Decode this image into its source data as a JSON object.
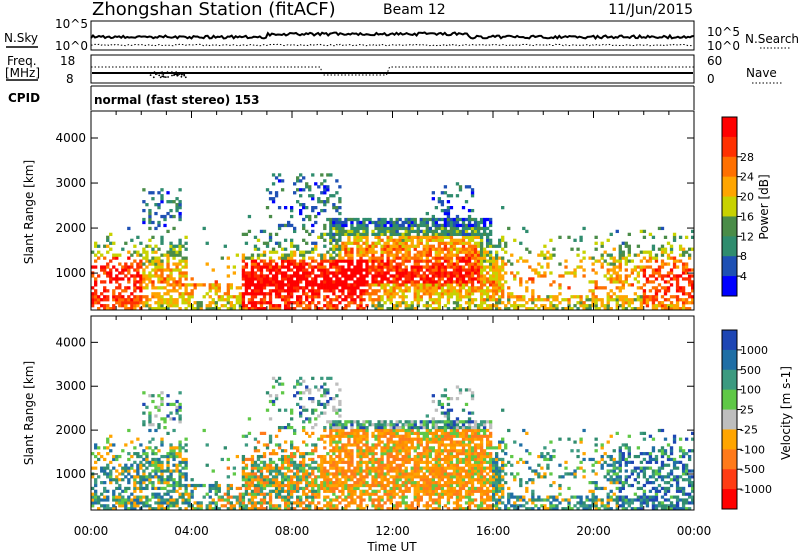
{
  "header": {
    "station": "Zhongshan Station (fitACF)",
    "beam": "Beam 12",
    "date": "11/Jun/2015"
  },
  "strips": {
    "nsky_label": "N.Sky",
    "nsky_ticks": [
      "10^5",
      "10^0"
    ],
    "nsearch_label": "N.Search",
    "nsearch_ticks": [
      "10^5",
      "10^0"
    ],
    "freq_label_1": "Freq.",
    "freq_label_2": "[MHz]",
    "freq_ticks": [
      "18",
      "8"
    ],
    "nave_label": "Nave",
    "nave_ticks": [
      "60",
      "0"
    ],
    "cpid_label": "CPID",
    "cpid_value": "normal (fast stereo) 153"
  },
  "chart_data": [
    {
      "type": "heatmap",
      "name": "power",
      "ylabel": "Slant Range [km]",
      "y_ticks": [
        "1000",
        "2000",
        "3000",
        "4000"
      ],
      "ylim": [
        180,
        4600
      ],
      "colorbar": {
        "label": "Power [dB]",
        "range": [
          0,
          32
        ],
        "ticks": [
          "4",
          "8",
          "12",
          "16",
          "20",
          "24",
          "28"
        ],
        "colors": [
          "#0000ff",
          "#1e50b4",
          "#2f8c6e",
          "#4a8c48",
          "#c8d200",
          "#ffa500",
          "#ff7000",
          "#ff3000",
          "#ff0000"
        ]
      }
    },
    {
      "type": "heatmap",
      "name": "velocity",
      "ylabel": "Slant Range [km]",
      "y_ticks": [
        "1000",
        "2000",
        "3000",
        "4000"
      ],
      "ylim": [
        180,
        4600
      ],
      "colorbar": {
        "label": "Velocity [m s-1]",
        "ticks": [
          "1000",
          "500",
          "100",
          "25",
          "-25",
          "-100",
          "-500",
          "-1000"
        ],
        "colors": [
          "#1e46b4",
          "#1f6ea5",
          "#3c9a80",
          "#5fc846",
          "#bebebe",
          "#ffa500",
          "#ff7a1a",
          "#ff3c14",
          "#ff0000"
        ]
      }
    }
  ],
  "time_axis": {
    "label": "Time UT",
    "ticks": [
      "00:00",
      "04:00",
      "08:00",
      "12:00",
      "16:00",
      "20:00",
      "00:00"
    ]
  }
}
